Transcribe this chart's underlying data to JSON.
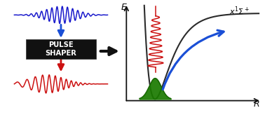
{
  "bg_color": "#ffffff",
  "blue_wave_color": "#1a1acc",
  "red_wave_color": "#cc1111",
  "box_color": "#111111",
  "box_text": "PULSE\nSHAPER",
  "box_text_color": "#ffffff",
  "curve_color": "#2b2b2b",
  "green_fill_color": "#1a7a00",
  "green_edge_color": "#145f00",
  "blue_arrow_color": "#1a4fd6",
  "laser_red_color": "#cc1111",
  "axis_color": "#111111"
}
